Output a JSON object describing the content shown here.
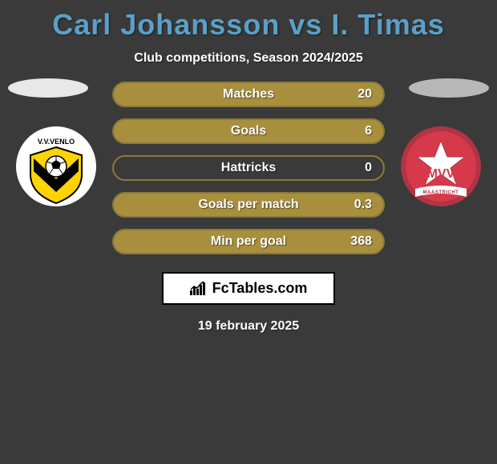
{
  "header": {
    "title": "Carl Johansson vs I. Timas",
    "subtitle": "Club competitions, Season 2024/2025"
  },
  "bars": {
    "pill_border_color": "#8a7a3a",
    "pill_fill_color": "#a88f3e",
    "rows": [
      {
        "label": "Matches",
        "value": "20",
        "fill_pct": 100
      },
      {
        "label": "Goals",
        "value": "6",
        "fill_pct": 100
      },
      {
        "label": "Hattricks",
        "value": "0",
        "fill_pct": 0
      },
      {
        "label": "Goals per match",
        "value": "0.3",
        "fill_pct": 100
      },
      {
        "label": "Min per goal",
        "value": "368",
        "fill_pct": 100
      }
    ],
    "label_fontsize": 16,
    "value_fontsize": 16,
    "title_color": "#5aa0c8"
  },
  "clubs": {
    "left": {
      "name": "vvv-venlo",
      "bg": "#ffffff",
      "accent": "#ffd400",
      "accent2": "#000000"
    },
    "right": {
      "name": "mvv-maastricht",
      "bg": "#d6394a",
      "star": "#ffffff"
    }
  },
  "footer": {
    "brand_text": "FcTables.com",
    "date": "19 february 2025"
  },
  "colors": {
    "page_bg": "#3a3a3a",
    "title": "#5aa0c8",
    "text": "#ffffff"
  }
}
